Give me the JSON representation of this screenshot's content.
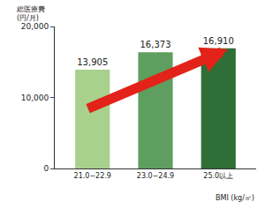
{
  "chart_data": {
    "type": "bar",
    "y_label": "総医療費\n(円/月)",
    "x_label": "BMI (kg/㎡)",
    "categories": [
      "21.0−22.9",
      "23.0−24.9",
      "25.0以上"
    ],
    "values": [
      13905,
      16373,
      16910
    ],
    "value_labels": [
      "13,905",
      "16,373",
      "16,910"
    ],
    "colors": [
      "#a9d18e",
      "#5e9e5e",
      "#2f6e36"
    ],
    "ylim": [
      0,
      20000
    ],
    "yticks": [
      0,
      {
        "value": 10000,
        "label": "10,000"
      },
      {
        "value": 20000,
        "label": "20,000"
      }
    ],
    "grid": false,
    "data_labels": true
  }
}
